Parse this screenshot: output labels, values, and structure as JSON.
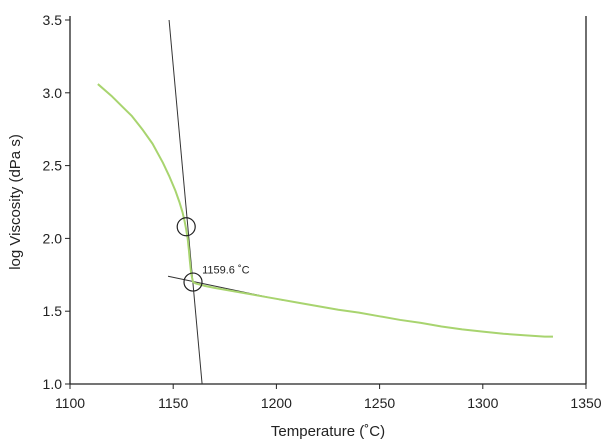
{
  "chart_data": {
    "type": "line",
    "title": "",
    "xlabel": "Temperature (˚C)",
    "ylabel": "log Viscosity (dPa s)",
    "xlim": [
      1100,
      1350
    ],
    "ylim": [
      1.0,
      3.5
    ],
    "x_ticks": [
      1100,
      1150,
      1200,
      1250,
      1300,
      1350
    ],
    "y_ticks": [
      1.0,
      1.5,
      2.0,
      2.5,
      3.0,
      3.5
    ],
    "x_tick_labels": [
      "1100",
      "1150",
      "1200",
      "1250",
      "1300",
      "1350"
    ],
    "y_tick_labels": [
      "1.0",
      "1.5",
      "2.0",
      "2.5",
      "3.0",
      "3.5"
    ],
    "grid": false,
    "series": [
      {
        "color": "#a8d46f",
        "x": [
          1113.5,
          1120,
          1125,
          1130,
          1135,
          1140,
          1145,
          1148,
          1151,
          1153,
          1154.5,
          1155.5,
          1156.3,
          1157,
          1157.6,
          1158.1,
          1158.7,
          1159.6,
          1161,
          1165,
          1170,
          1180,
          1190,
          1200,
          1210,
          1220,
          1230,
          1240,
          1250,
          1260,
          1270,
          1280,
          1290,
          1300,
          1310,
          1320,
          1330,
          1334
        ],
        "y": [
          3.06,
          2.98,
          2.91,
          2.84,
          2.75,
          2.65,
          2.52,
          2.43,
          2.33,
          2.25,
          2.18,
          2.12,
          2.06,
          2.0,
          1.92,
          1.84,
          1.76,
          1.7,
          1.69,
          1.675,
          1.66,
          1.635,
          1.61,
          1.585,
          1.56,
          1.535,
          1.51,
          1.49,
          1.465,
          1.44,
          1.42,
          1.395,
          1.375,
          1.36,
          1.345,
          1.335,
          1.325,
          1.325
        ]
      }
    ],
    "tangent_lines": [
      {
        "color": "#333333",
        "x": [
          1148,
          1164
        ],
        "y": [
          3.5,
          1.0
        ]
      },
      {
        "color": "#333333",
        "x": [
          1147.5,
          1203
        ],
        "y": [
          1.74,
          1.575
        ]
      }
    ],
    "markers": [
      {
        "shape": "circle",
        "x": 1156.3,
        "y": 2.08
      },
      {
        "shape": "circle",
        "x": 1159.6,
        "y": 1.7
      }
    ],
    "annotations": [
      {
        "text": "1159.6 ˚C",
        "x": 1164,
        "y": 1.76
      }
    ]
  }
}
